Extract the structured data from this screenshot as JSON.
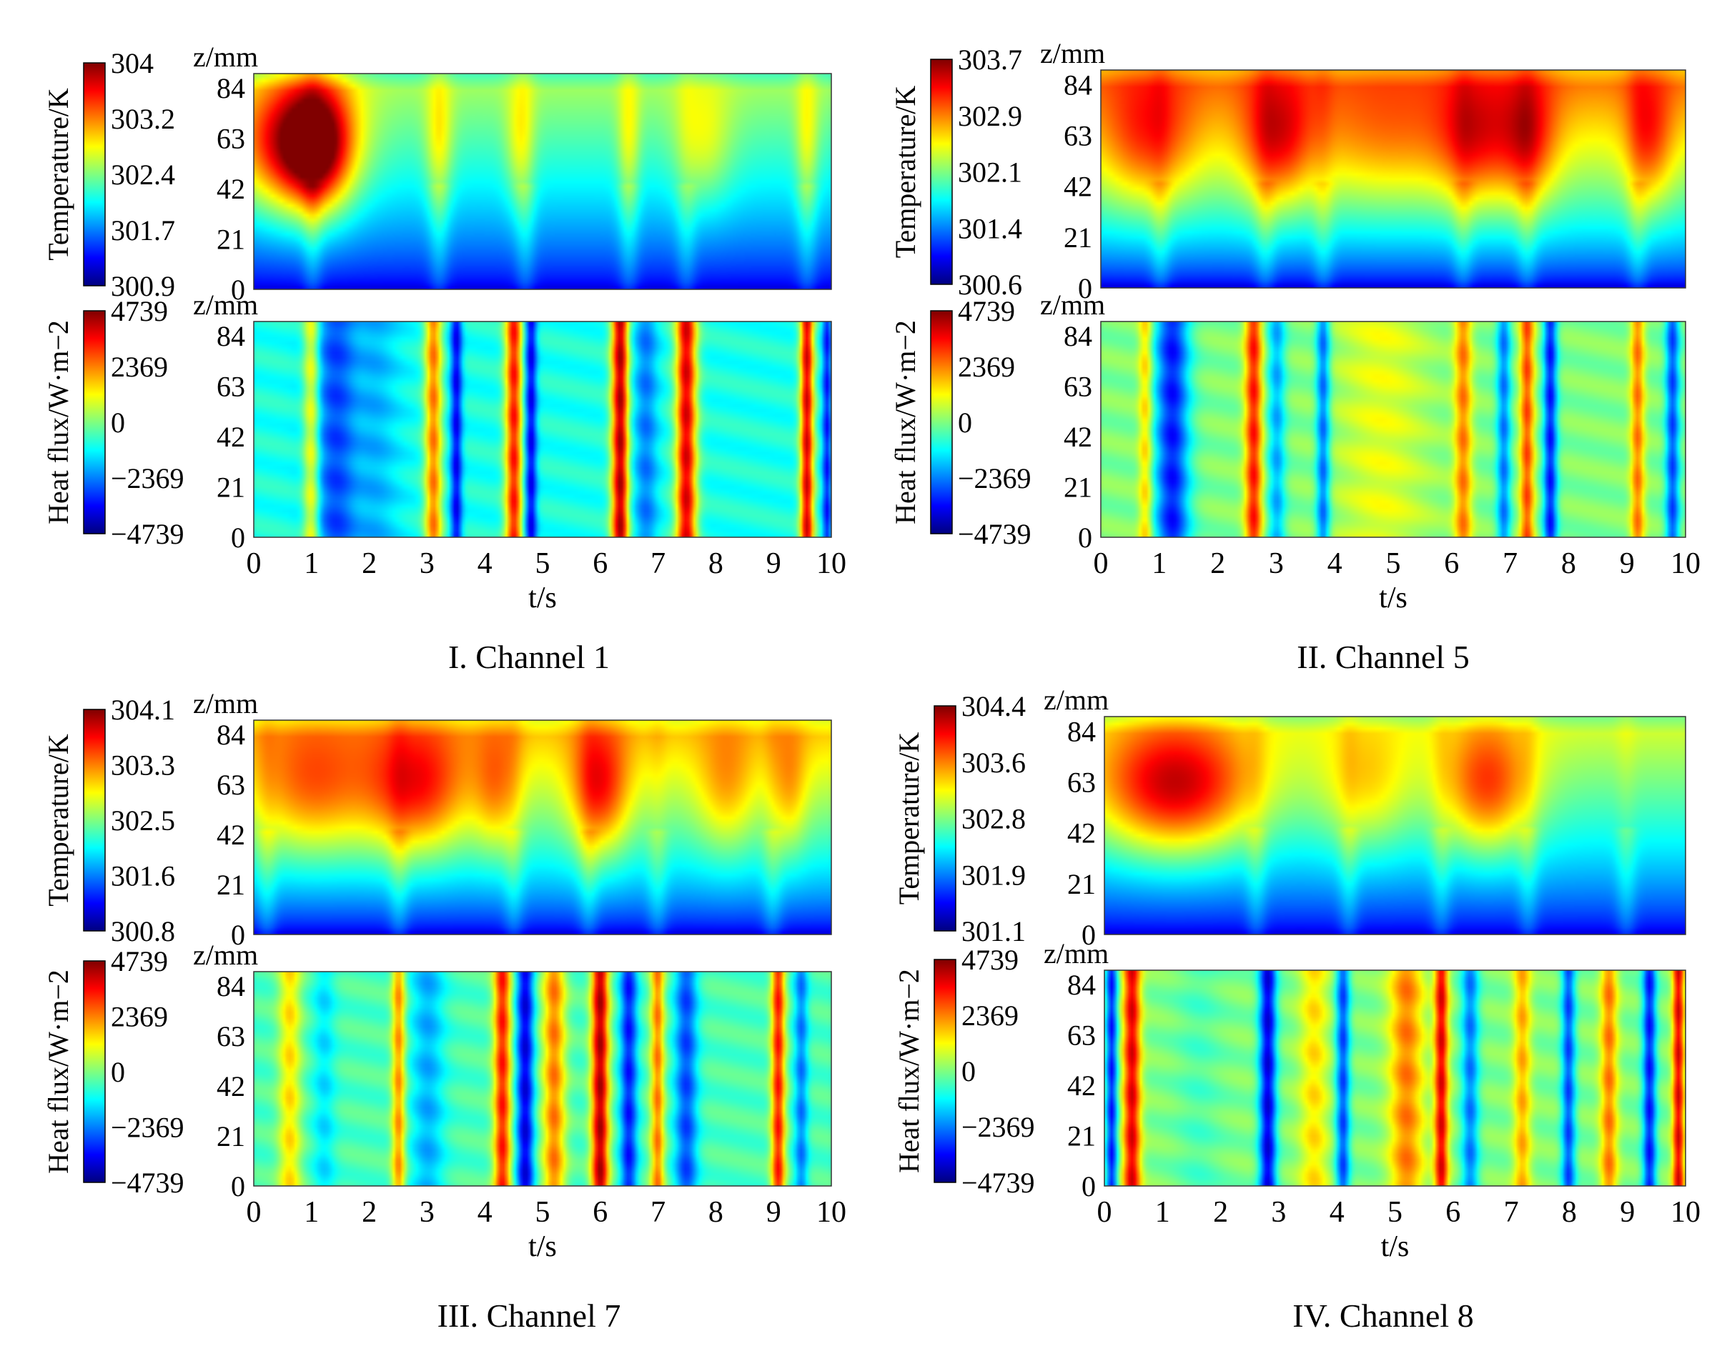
{
  "figure": {
    "panels": [
      {
        "caption": "I. Channel 1"
      },
      {
        "caption": "II. Channel 5"
      },
      {
        "caption": "III. Channel 7"
      },
      {
        "caption": "IV. Channel 8"
      }
    ]
  },
  "chart_data": [
    {
      "type": "heatmap",
      "panel": "I. Channel 1",
      "title": "Temperature",
      "xlabel": "t/s",
      "ylabel": "z/mm",
      "colorbar_label": "Temperature/K",
      "x_ticks": [
        "0",
        "1",
        "2",
        "3",
        "4",
        "5",
        "6",
        "7",
        "8",
        "9",
        "10"
      ],
      "y_ticks": [
        "84",
        "63",
        "42",
        "21",
        "0"
      ],
      "xlim": [
        0,
        10
      ],
      "ylim": [
        0,
        90
      ],
      "colorbar_ticks": [
        "304",
        "303.2",
        "302.4",
        "301.7",
        "300.9"
      ],
      "clim": [
        300.9,
        304.0
      ],
      "profile": "temp",
      "pattern": "hot early (0-1.5 s) then cooling, bottom cold",
      "blobs": [
        [
          0.6,
          1.0,
          1.0
        ],
        [
          1.1,
          0.6,
          0.9
        ],
        [
          3.2,
          0.25,
          0.35
        ],
        [
          4.6,
          0.25,
          0.35
        ],
        [
          6.5,
          0.2,
          0.3
        ],
        [
          7.8,
          0.5,
          0.35
        ],
        [
          9.6,
          0.2,
          0.3
        ]
      ],
      "base": 0.45,
      "pulses": [
        1.0,
        3.2,
        4.7,
        6.5,
        7.5,
        9.6
      ],
      "grid": false,
      "colormap": "jet"
    },
    {
      "type": "heatmap",
      "panel": "I. Channel 1",
      "title": "Heat flux",
      "xlabel": "t/s",
      "ylabel": "z/mm",
      "colorbar_label": "Heat flux/W·m−2",
      "x_ticks": [
        "0",
        "1",
        "2",
        "3",
        "4",
        "5",
        "6",
        "7",
        "8",
        "9",
        "10"
      ],
      "y_ticks": [
        "84",
        "63",
        "42",
        "21",
        "0"
      ],
      "xlim": [
        0,
        10
      ],
      "ylim": [
        0,
        90
      ],
      "colorbar_ticks": [
        "4739",
        "2369",
        "0",
        "−2369",
        "−4739"
      ],
      "clim": [
        -4739,
        4739
      ],
      "profile": "flux",
      "bands": [
        [
          1.0,
          0.75,
          0.15
        ],
        [
          1.5,
          0.15,
          0.45
        ],
        [
          2.0,
          0.3,
          0.5
        ],
        [
          3.1,
          0.75,
          0.15
        ],
        [
          3.5,
          0.12,
          0.1
        ],
        [
          4.5,
          0.85,
          0.15
        ],
        [
          4.8,
          0.12,
          0.1
        ],
        [
          6.35,
          0.95,
          0.15
        ],
        [
          6.8,
          0.25,
          0.2
        ],
        [
          7.5,
          0.9,
          0.18
        ],
        [
          9.6,
          0.9,
          0.12
        ],
        [
          9.95,
          0.15,
          0.08
        ]
      ],
      "base": 0.4,
      "grid": false,
      "colormap": "jet"
    },
    {
      "type": "heatmap",
      "panel": "II. Channel 5",
      "title": "Temperature",
      "xlabel": "t/s",
      "ylabel": "z/mm",
      "colorbar_label": "Temperature/K",
      "x_ticks": [
        "0",
        "1",
        "2",
        "3",
        "4",
        "5",
        "6",
        "7",
        "8",
        "9",
        "10"
      ],
      "y_ticks": [
        "84",
        "63",
        "42",
        "21",
        "0"
      ],
      "xlim": [
        0,
        10
      ],
      "ylim": [
        0,
        90
      ],
      "colorbar_ticks": [
        "303.7",
        "302.9",
        "302.1",
        "301.4",
        "300.6"
      ],
      "clim": [
        300.6,
        303.7
      ],
      "profile": "temp",
      "pattern": "hot upper half with periodic hot cores",
      "blobs": [
        [
          0.8,
          0.8,
          0.5
        ],
        [
          3.0,
          0.6,
          0.6
        ],
        [
          6.4,
          0.6,
          0.5
        ],
        [
          7.3,
          0.5,
          0.6
        ],
        [
          9.4,
          0.4,
          0.5
        ],
        [
          5.0,
          1.5,
          0.3
        ]
      ],
      "base": 0.68,
      "pulses": [
        1.0,
        2.8,
        3.8,
        6.2,
        7.3,
        9.2
      ],
      "grid": false,
      "colormap": "jet"
    },
    {
      "type": "heatmap",
      "panel": "II. Channel 5",
      "title": "Heat flux",
      "xlabel": "t/s",
      "ylabel": "z/mm",
      "colorbar_label": "Heat flux/W·m−2",
      "x_ticks": [
        "0",
        "1",
        "2",
        "3",
        "4",
        "5",
        "6",
        "7",
        "8",
        "9",
        "10"
      ],
      "y_ticks": [
        "84",
        "63",
        "42",
        "21",
        "0"
      ],
      "xlim": [
        0,
        10
      ],
      "ylim": [
        0,
        90
      ],
      "colorbar_ticks": [
        "4739",
        "2369",
        "0",
        "−2369",
        "−4739"
      ],
      "clim": [
        -4739,
        4739
      ],
      "profile": "flux",
      "bands": [
        [
          0.75,
          0.7,
          0.12
        ],
        [
          1.2,
          0.15,
          0.3
        ],
        [
          2.6,
          0.85,
          0.15
        ],
        [
          3.0,
          0.3,
          0.15
        ],
        [
          3.8,
          0.15,
          0.12
        ],
        [
          4.8,
          0.6,
          0.8
        ],
        [
          6.2,
          0.75,
          0.15
        ],
        [
          6.9,
          0.25,
          0.12
        ],
        [
          7.3,
          0.8,
          0.12
        ],
        [
          7.7,
          0.15,
          0.12
        ],
        [
          9.2,
          0.75,
          0.12
        ],
        [
          9.8,
          0.2,
          0.12
        ]
      ],
      "base": 0.5,
      "grid": false,
      "colormap": "jet"
    },
    {
      "type": "heatmap",
      "panel": "III. Channel 7",
      "title": "Temperature",
      "xlabel": "t/s",
      "ylabel": "z/mm",
      "colorbar_label": "Temperature/K",
      "x_ticks": [
        "0",
        "1",
        "2",
        "3",
        "4",
        "5",
        "6",
        "7",
        "8",
        "9",
        "10"
      ],
      "y_ticks": [
        "84",
        "63",
        "42",
        "21",
        "0"
      ],
      "xlim": [
        0,
        10
      ],
      "ylim": [
        0,
        90
      ],
      "colorbar_ticks": [
        "304.1",
        "303.3",
        "302.5",
        "301.6",
        "300.8"
      ],
      "clim": [
        300.8,
        304.1
      ],
      "profile": "temp",
      "pattern": "hot upper region, peaks near 2.8 s and 6 s",
      "blobs": [
        [
          1.0,
          1.0,
          0.5
        ],
        [
          2.8,
          0.9,
          0.7
        ],
        [
          6.0,
          0.5,
          0.7
        ],
        [
          4.2,
          0.4,
          0.4
        ],
        [
          8.2,
          0.5,
          0.35
        ],
        [
          9.3,
          0.3,
          0.35
        ]
      ],
      "base": 0.6,
      "pulses": [
        0.2,
        2.5,
        4.5,
        5.8,
        7.0,
        9.0
      ],
      "grid": false,
      "colormap": "jet"
    },
    {
      "type": "heatmap",
      "panel": "III. Channel 7",
      "title": "Heat flux",
      "xlabel": "t/s",
      "ylabel": "z/mm",
      "colorbar_label": "Heat flux/W·m−2",
      "x_ticks": [
        "0",
        "1",
        "2",
        "3",
        "4",
        "5",
        "6",
        "7",
        "8",
        "9",
        "10"
      ],
      "y_ticks": [
        "84",
        "63",
        "42",
        "21",
        "0"
      ],
      "xlim": [
        0,
        10
      ],
      "ylim": [
        0,
        90
      ],
      "colorbar_ticks": [
        "4739",
        "2369",
        "0",
        "−2369",
        "−4739"
      ],
      "clim": [
        -4739,
        4739
      ],
      "profile": "flux",
      "bands": [
        [
          0.6,
          0.65,
          0.2
        ],
        [
          1.2,
          0.35,
          0.2
        ],
        [
          2.5,
          0.75,
          0.12
        ],
        [
          3.0,
          0.3,
          0.3
        ],
        [
          4.3,
          0.85,
          0.15
        ],
        [
          4.7,
          0.1,
          0.15
        ],
        [
          5.2,
          0.75,
          0.2
        ],
        [
          6.0,
          0.95,
          0.15
        ],
        [
          6.5,
          0.15,
          0.15
        ],
        [
          7.0,
          0.75,
          0.12
        ],
        [
          7.5,
          0.2,
          0.2
        ],
        [
          9.1,
          0.85,
          0.12
        ],
        [
          9.5,
          0.25,
          0.12
        ]
      ],
      "base": 0.45,
      "grid": false,
      "colormap": "jet"
    },
    {
      "type": "heatmap",
      "panel": "IV. Channel 8",
      "title": "Temperature",
      "xlabel": "t/s",
      "ylabel": "z/mm",
      "colorbar_label": "Temperature/K",
      "x_ticks": [
        "0",
        "1",
        "2",
        "3",
        "4",
        "5",
        "6",
        "7",
        "8",
        "9",
        "10"
      ],
      "y_ticks": [
        "84",
        "63",
        "42",
        "21",
        "0"
      ],
      "xlim": [
        0,
        10
      ],
      "ylim": [
        0,
        90
      ],
      "colorbar_ticks": [
        "304.4",
        "303.6",
        "302.8",
        "301.9",
        "301.1"
      ],
      "clim": [
        301.1,
        304.4
      ],
      "profile": "temp",
      "pattern": "hot block 0-2.5 s, second warm region 6-7 s",
      "blobs": [
        [
          1.2,
          1.4,
          1.0
        ],
        [
          6.6,
          0.8,
          0.75
        ],
        [
          4.5,
          0.8,
          0.4
        ]
      ],
      "base": 0.5,
      "pulses": [
        2.6,
        4.2,
        5.8,
        7.3,
        9.0
      ],
      "grid": false,
      "colormap": "jet"
    },
    {
      "type": "heatmap",
      "panel": "IV. Channel 8",
      "title": "Heat flux",
      "xlabel": "t/s",
      "ylabel": "z/mm",
      "colorbar_label": "Heat flux/W·m−2",
      "x_ticks": [
        "0",
        "1",
        "2",
        "3",
        "4",
        "5",
        "6",
        "7",
        "8",
        "9",
        "10"
      ],
      "y_ticks": [
        "84",
        "63",
        "42",
        "21",
        "0"
      ],
      "xlim": [
        0,
        10
      ],
      "ylim": [
        0,
        90
      ],
      "colorbar_ticks": [
        "4739",
        "2369",
        "0",
        "−2369",
        "−4739"
      ],
      "clim": [
        -4739,
        4739
      ],
      "profile": "flux",
      "bands": [
        [
          0.1,
          0.15,
          0.1
        ],
        [
          0.45,
          0.9,
          0.15
        ],
        [
          1.6,
          0.45,
          0.4
        ],
        [
          2.8,
          0.1,
          0.15
        ],
        [
          3.6,
          0.65,
          0.25
        ],
        [
          4.1,
          0.2,
          0.12
        ],
        [
          5.2,
          0.75,
          0.3
        ],
        [
          5.8,
          0.9,
          0.12
        ],
        [
          6.3,
          0.25,
          0.15
        ],
        [
          7.2,
          0.7,
          0.15
        ],
        [
          8.0,
          0.2,
          0.12
        ],
        [
          8.7,
          0.75,
          0.15
        ],
        [
          9.4,
          0.15,
          0.12
        ],
        [
          9.9,
          0.9,
          0.1
        ]
      ],
      "base": 0.5,
      "grid": false,
      "colormap": "jet"
    }
  ]
}
